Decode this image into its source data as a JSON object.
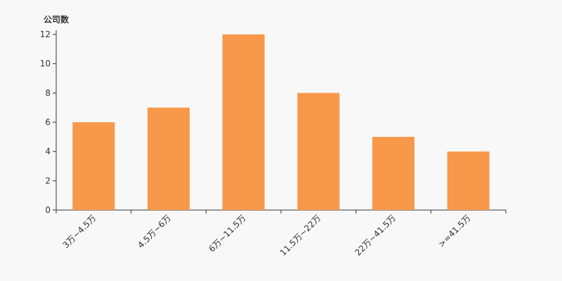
{
  "chart_data": {
    "type": "bar",
    "ylabel": "公司数",
    "xlabel": "",
    "categories": [
      "3万~4.5万",
      "4.5万~6万",
      "6万~11.5万",
      "11.5万~22万",
      "22万~41.5万",
      ">=41.5万"
    ],
    "values": [
      6,
      7,
      12,
      8,
      5,
      4
    ],
    "ylim": [
      0,
      12
    ],
    "yticks": [
      0,
      2,
      4,
      6,
      8,
      10,
      12
    ],
    "grid": false,
    "bar_color": "#f7984a",
    "background": "#f8f8f8"
  }
}
